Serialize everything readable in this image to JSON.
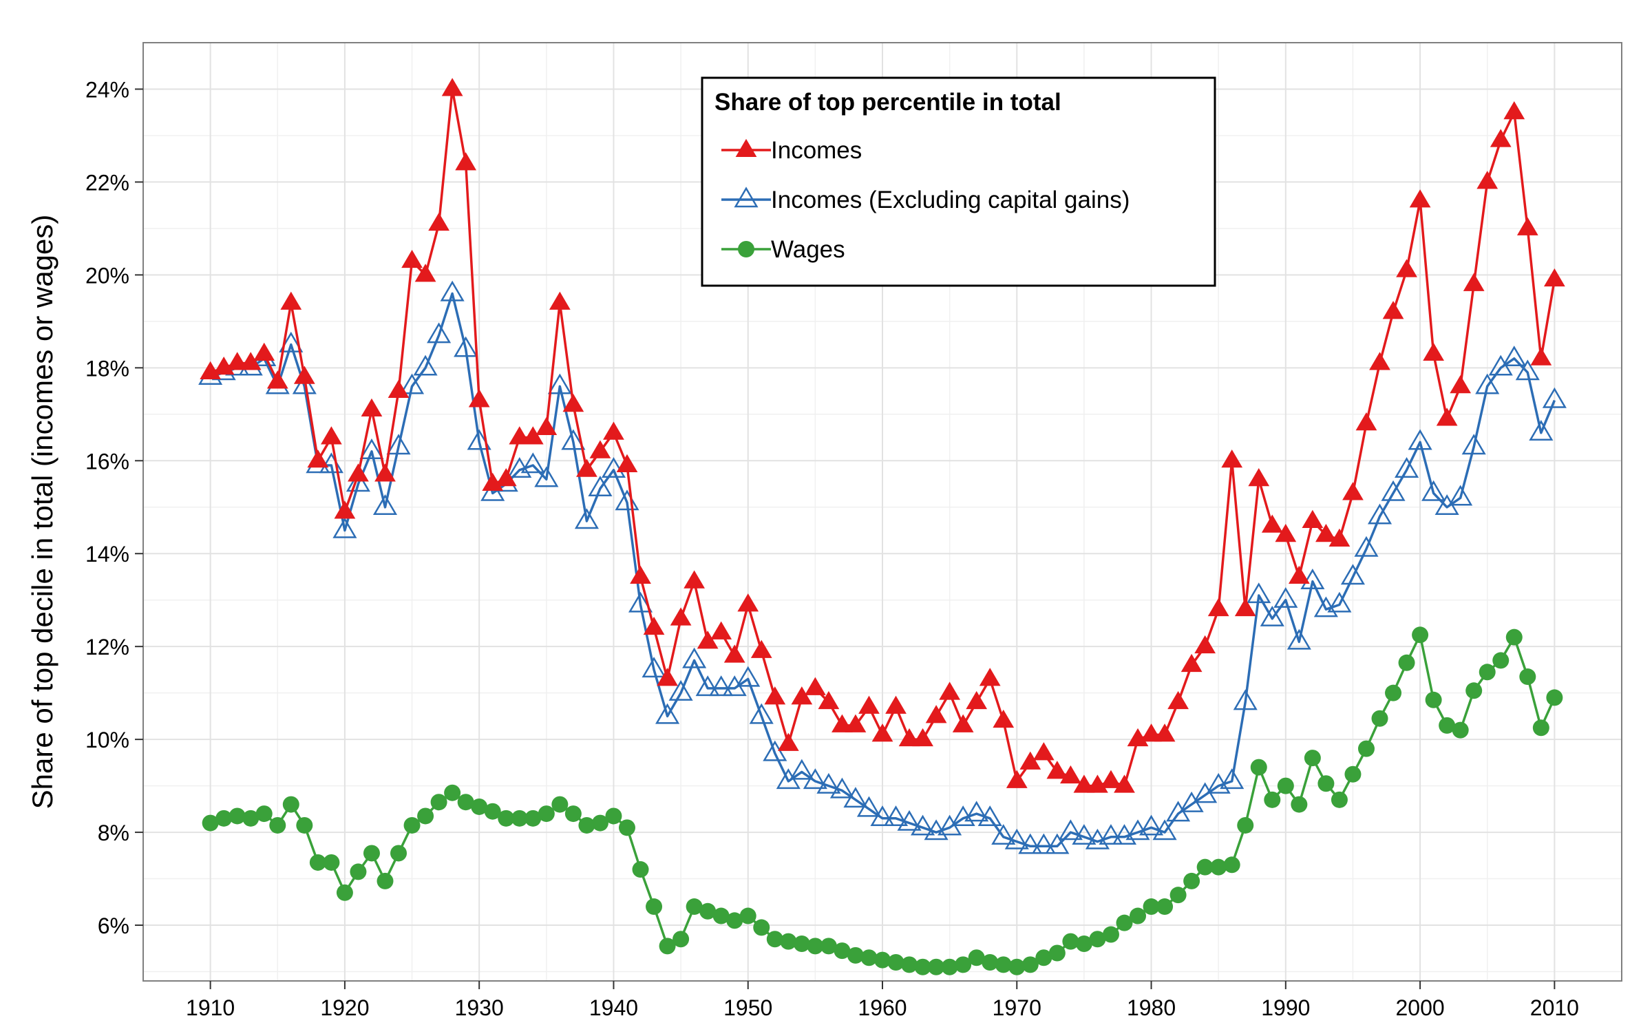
{
  "chart_data": {
    "type": "line",
    "title": "",
    "xlabel": "",
    "ylabel": "Share of top decile in total (incomes or wages)",
    "xlim": [
      1905,
      2015
    ],
    "ylim": [
      4.8,
      25
    ],
    "x_ticks": [
      1910,
      1920,
      1930,
      1940,
      1950,
      1960,
      1970,
      1980,
      1990,
      2000,
      2010
    ],
    "x_tick_labels": [
      "1910",
      "1920",
      "1930",
      "1940",
      "1950",
      "1960",
      "1970",
      "1980",
      "1990",
      "2000",
      "2010"
    ],
    "y_ticks": [
      6,
      8,
      10,
      12,
      14,
      16,
      18,
      20,
      22,
      24
    ],
    "y_tick_labels": [
      "6%",
      "8%",
      "10%",
      "12%",
      "14%",
      "16%",
      "18%",
      "20%",
      "22%",
      "24%"
    ],
    "grid": true,
    "legend": {
      "title": "Share of top percentile in total",
      "placement": "top-center"
    },
    "x": [
      1910,
      1911,
      1912,
      1913,
      1914,
      1915,
      1916,
      1917,
      1918,
      1919,
      1920,
      1921,
      1922,
      1923,
      1924,
      1925,
      1926,
      1927,
      1928,
      1929,
      1930,
      1931,
      1932,
      1933,
      1934,
      1935,
      1936,
      1937,
      1938,
      1939,
      1940,
      1941,
      1942,
      1943,
      1944,
      1945,
      1946,
      1947,
      1948,
      1949,
      1950,
      1951,
      1952,
      1953,
      1954,
      1955,
      1956,
      1957,
      1958,
      1959,
      1960,
      1961,
      1962,
      1963,
      1964,
      1965,
      1966,
      1967,
      1968,
      1969,
      1970,
      1971,
      1972,
      1973,
      1974,
      1975,
      1976,
      1977,
      1978,
      1979,
      1980,
      1981,
      1982,
      1983,
      1984,
      1985,
      1986,
      1987,
      1988,
      1989,
      1990,
      1991,
      1992,
      1993,
      1994,
      1995,
      1996,
      1997,
      1998,
      1999,
      2000,
      2001,
      2002,
      2003,
      2004,
      2005,
      2006,
      2007,
      2008,
      2009,
      2010
    ],
    "series": [
      {
        "name": "Incomes",
        "color": "#e31a1c",
        "marker": "filled-triangle",
        "values": [
          17.9,
          18.0,
          18.1,
          18.1,
          18.3,
          17.7,
          19.4,
          17.8,
          16.0,
          16.5,
          14.9,
          15.7,
          17.1,
          15.7,
          17.5,
          20.3,
          20.0,
          21.1,
          24.0,
          22.4,
          17.3,
          15.5,
          15.6,
          16.5,
          16.5,
          16.7,
          19.4,
          17.2,
          15.8,
          16.2,
          16.6,
          15.9,
          13.5,
          12.4,
          11.3,
          12.6,
          13.4,
          12.1,
          12.3,
          11.8,
          12.9,
          11.9,
          10.9,
          9.9,
          10.9,
          11.1,
          10.8,
          10.3,
          10.3,
          10.7,
          10.1,
          10.7,
          10.0,
          10.0,
          10.5,
          11.0,
          10.3,
          10.8,
          11.3,
          10.4,
          9.1,
          9.5,
          9.7,
          9.3,
          9.2,
          9.0,
          9.0,
          9.1,
          9.0,
          10.0,
          10.1,
          10.1,
          10.8,
          11.6,
          12.0,
          12.8,
          16.0,
          12.8,
          15.6,
          14.6,
          14.4,
          13.5,
          14.7,
          14.4,
          14.3,
          15.3,
          16.8,
          18.1,
          19.2,
          20.1,
          21.6,
          18.3,
          16.9,
          17.6,
          19.8,
          22.0,
          22.9,
          23.5,
          21.0,
          18.2,
          19.9
        ]
      },
      {
        "name": "Incomes (Excluding capital gains)",
        "color": "#2c6db5",
        "marker": "open-triangle",
        "values": [
          17.8,
          17.9,
          18.0,
          18.0,
          18.2,
          17.6,
          18.5,
          17.6,
          15.9,
          15.9,
          14.5,
          15.5,
          16.2,
          15.0,
          16.3,
          17.6,
          18.0,
          18.7,
          19.6,
          18.4,
          16.4,
          15.3,
          15.5,
          15.8,
          15.9,
          15.6,
          17.6,
          16.4,
          14.7,
          15.4,
          15.8,
          15.1,
          12.9,
          11.5,
          10.5,
          11.0,
          11.7,
          11.1,
          11.1,
          11.1,
          11.3,
          10.5,
          9.7,
          9.1,
          9.3,
          9.1,
          9.0,
          8.9,
          8.7,
          8.5,
          8.3,
          8.3,
          8.2,
          8.1,
          8.0,
          8.1,
          8.3,
          8.4,
          8.3,
          7.9,
          7.8,
          7.7,
          7.7,
          7.7,
          8.0,
          7.9,
          7.8,
          7.9,
          7.9,
          8.0,
          8.1,
          8.0,
          8.4,
          8.6,
          8.8,
          9.0,
          9.1,
          10.8,
          13.1,
          12.6,
          13.0,
          12.1,
          13.4,
          12.8,
          12.9,
          13.5,
          14.1,
          14.8,
          15.3,
          15.8,
          16.4,
          15.3,
          15.0,
          15.2,
          16.3,
          17.6,
          18.0,
          18.2,
          17.9,
          16.6,
          17.3
        ]
      },
      {
        "name": "Wages",
        "color": "#3aa13a",
        "marker": "filled-circle",
        "values": [
          8.2,
          8.3,
          8.35,
          8.3,
          8.4,
          8.15,
          8.6,
          8.15,
          7.35,
          7.35,
          6.7,
          7.15,
          7.55,
          6.95,
          7.55,
          8.15,
          8.35,
          8.65,
          8.85,
          8.65,
          8.55,
          8.45,
          8.3,
          8.3,
          8.3,
          8.4,
          8.6,
          8.4,
          8.15,
          8.2,
          8.35,
          8.1,
          7.2,
          6.4,
          5.55,
          5.7,
          6.4,
          6.3,
          6.2,
          6.1,
          6.2,
          5.95,
          5.7,
          5.65,
          5.6,
          5.55,
          5.55,
          5.45,
          5.35,
          5.3,
          5.25,
          5.2,
          5.15,
          5.1,
          5.1,
          5.1,
          5.15,
          5.3,
          5.2,
          5.15,
          5.1,
          5.15,
          5.3,
          5.4,
          5.65,
          5.6,
          5.7,
          5.8,
          6.05,
          6.2,
          6.4,
          6.4,
          6.65,
          6.95,
          7.25,
          7.25,
          7.3,
          8.15,
          9.4,
          8.7,
          9.0,
          8.6,
          9.6,
          9.05,
          8.7,
          9.25,
          9.8,
          10.45,
          11.0,
          11.65,
          12.25,
          10.85,
          10.3,
          10.2,
          11.05,
          11.45,
          11.7,
          12.2,
          11.35,
          10.25,
          10.9
        ]
      }
    ]
  }
}
